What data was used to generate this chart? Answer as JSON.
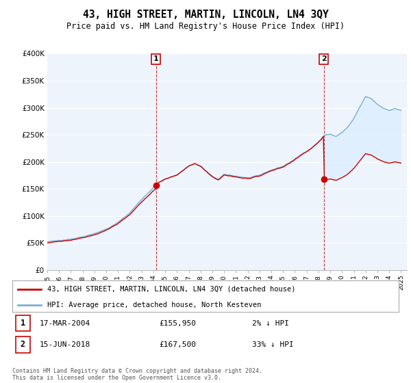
{
  "title": "43, HIGH STREET, MARTIN, LINCOLN, LN4 3QY",
  "subtitle": "Price paid vs. HM Land Registry's House Price Index (HPI)",
  "ylim": [
    0,
    400000
  ],
  "yticks": [
    0,
    50000,
    100000,
    150000,
    200000,
    250000,
    300000,
    350000,
    400000
  ],
  "ytick_labels": [
    "£0",
    "£50K",
    "£100K",
    "£150K",
    "£200K",
    "£250K",
    "£300K",
    "£350K",
    "£400K"
  ],
  "hpi_color": "#7bafd4",
  "price_color": "#cc0000",
  "fill_color": "#ddeeff",
  "background_color": "#ffffff",
  "plot_bg_color": "#eef4fb",
  "grid_color": "#ffffff",
  "legend_label_price": "43, HIGH STREET, MARTIN, LINCOLN, LN4 3QY (detached house)",
  "legend_label_hpi": "HPI: Average price, detached house, North Kesteven",
  "sale1_date": "17-MAR-2004",
  "sale1_price": "£155,950",
  "sale1_hpi": "2% ↓ HPI",
  "sale2_date": "15-JUN-2018",
  "sale2_price": "£167,500",
  "sale2_hpi": "33% ↓ HPI",
  "footer": "Contains HM Land Registry data © Crown copyright and database right 2024.\nThis data is licensed under the Open Government Licence v3.0.",
  "sale1_year_f": 2004.21,
  "sale1_value": 155950,
  "sale2_year_f": 2018.46,
  "sale2_value": 167500,
  "xlim_start": 1995.0,
  "xlim_end": 2025.5
}
